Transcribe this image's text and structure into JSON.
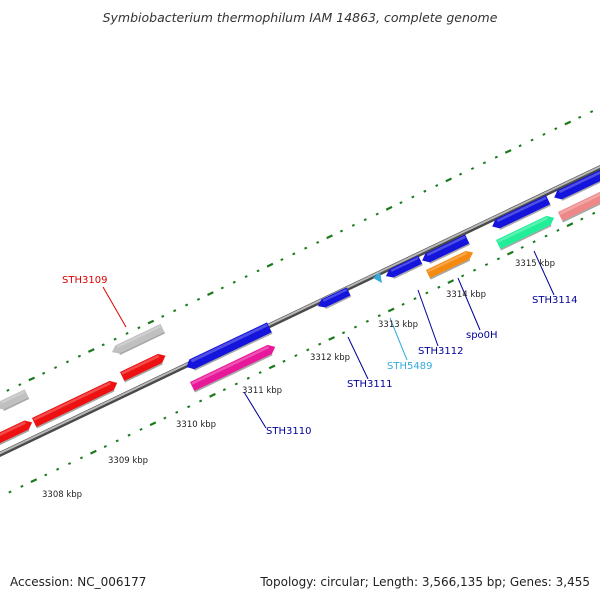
{
  "title": "Symbiobacterium thermophilum IAM 14863, complete genome",
  "footer": {
    "accession": "Accession: NC_006177",
    "summary": "Topology: circular; Length: 3,566,135 bp; Genes: 3,455"
  },
  "ticks": [
    {
      "label": "3308 kbp"
    },
    {
      "label": "3309 kbp"
    },
    {
      "label": "3310 kbp"
    },
    {
      "label": "3311 kbp"
    },
    {
      "label": "3312 kbp"
    },
    {
      "label": "3313 kbp"
    },
    {
      "label": "3314 kbp"
    },
    {
      "label": "3315 kbp"
    }
  ],
  "genes": [
    {
      "name": "STH3109",
      "color": "#dd0000"
    },
    {
      "name": "STH3110",
      "color": "#000099"
    },
    {
      "name": "STH3111",
      "color": "#000099"
    },
    {
      "name": "STH5489",
      "color": "#33aadd"
    },
    {
      "name": "STH3112",
      "color": "#000099"
    },
    {
      "name": "spo0H",
      "color": "#000099"
    },
    {
      "name": "STH3114",
      "color": "#000099"
    }
  ],
  "colors": {
    "backbone": "#888888",
    "tick": "#1a7a1a",
    "red": "#ee1111",
    "blue": "#1414dd",
    "grey": "#c0c0c0",
    "pink": "#e8189a",
    "orange": "#f48a10",
    "teal": "#22ee99",
    "salmon": "#ee8888",
    "lightblue": "#33aadd"
  }
}
